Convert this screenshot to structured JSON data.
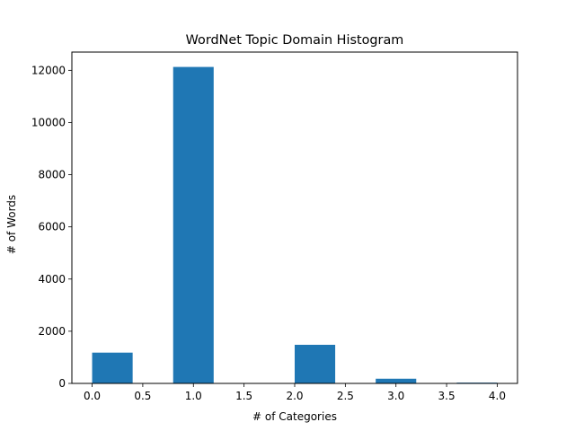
{
  "chart_data": {
    "type": "bar",
    "title": "WordNet Topic Domain Histogram",
    "xlabel": "# of Categories",
    "ylabel": "# of Words",
    "xlim": [
      -0.2,
      4.2
    ],
    "ylim": [
      0,
      12700
    ],
    "xticks": [
      0.0,
      0.5,
      1.0,
      1.5,
      2.0,
      2.5,
      3.0,
      3.5,
      4.0
    ],
    "xtick_labels": [
      "0.0",
      "0.5",
      "1.0",
      "1.5",
      "2.0",
      "2.5",
      "3.0",
      "3.5",
      "4.0"
    ],
    "yticks": [
      0,
      2000,
      4000,
      6000,
      8000,
      10000,
      12000
    ],
    "ytick_labels": [
      "0",
      "2000",
      "4000",
      "6000",
      "8000",
      "10000",
      "12000"
    ],
    "bin_width": 0.4,
    "bins": [
      {
        "x0": 0.0,
        "x1": 0.4,
        "value": 1180
      },
      {
        "x0": 0.4,
        "x1": 0.8,
        "value": 0
      },
      {
        "x0": 0.8,
        "x1": 1.2,
        "value": 12130
      },
      {
        "x0": 1.2,
        "x1": 1.6,
        "value": 0
      },
      {
        "x0": 1.6,
        "x1": 2.0,
        "value": 0
      },
      {
        "x0": 2.0,
        "x1": 2.4,
        "value": 1480
      },
      {
        "x0": 2.4,
        "x1": 2.8,
        "value": 0
      },
      {
        "x0": 2.8,
        "x1": 3.2,
        "value": 180
      },
      {
        "x0": 3.2,
        "x1": 3.6,
        "value": 0
      },
      {
        "x0": 3.6,
        "x1": 4.0,
        "value": 30
      }
    ],
    "grid": false,
    "legend": "none",
    "bar_color": "#1f77b4"
  }
}
